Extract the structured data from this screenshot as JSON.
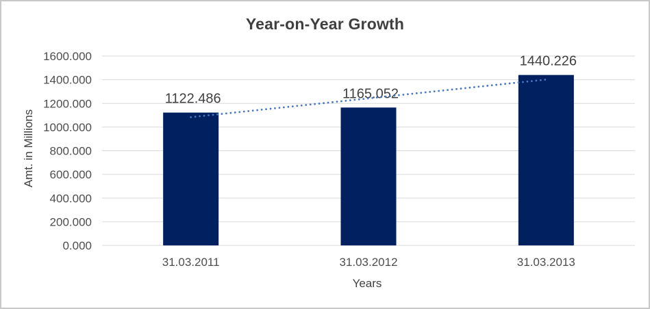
{
  "window": {
    "background": "#ffffff",
    "border_color": "#c8c8c8"
  },
  "chart_data": {
    "type": "bar",
    "title": "Year-on-Year Growth",
    "xlabel": "Years",
    "ylabel": "Amt. in Millions",
    "categories": [
      "31.03.2011",
      "31.03.2012",
      "31.03.2013"
    ],
    "series": [
      {
        "name": "Amt. in Millions",
        "values": [
          1122.486,
          1165.052,
          1440.226
        ]
      }
    ],
    "data_labels": [
      "1122.486",
      "1165.052",
      "1440.226"
    ],
    "decimals": 3,
    "ylim": [
      0,
      1600
    ],
    "ytick_step": 200,
    "ytick_labels": [
      "0.000",
      "200.000",
      "400.000",
      "600.000",
      "800.000",
      "1000.000",
      "1200.000",
      "1400.000",
      "1600.000"
    ],
    "grid": "horizontal-gridlines",
    "legend": "none",
    "trendline": {
      "type": "linear",
      "style": "dotted",
      "span": "first-to-last-category-center"
    },
    "colors": {
      "bar": "#002060",
      "trendline": "#4777c2",
      "gridline": "#d9d9d9",
      "axis_line": "#d9d9d9",
      "title_text": "#3f3f3f",
      "axis_title_text": "#404040",
      "tick_text": "#4d4d4d",
      "data_label_text": "#404040"
    }
  }
}
